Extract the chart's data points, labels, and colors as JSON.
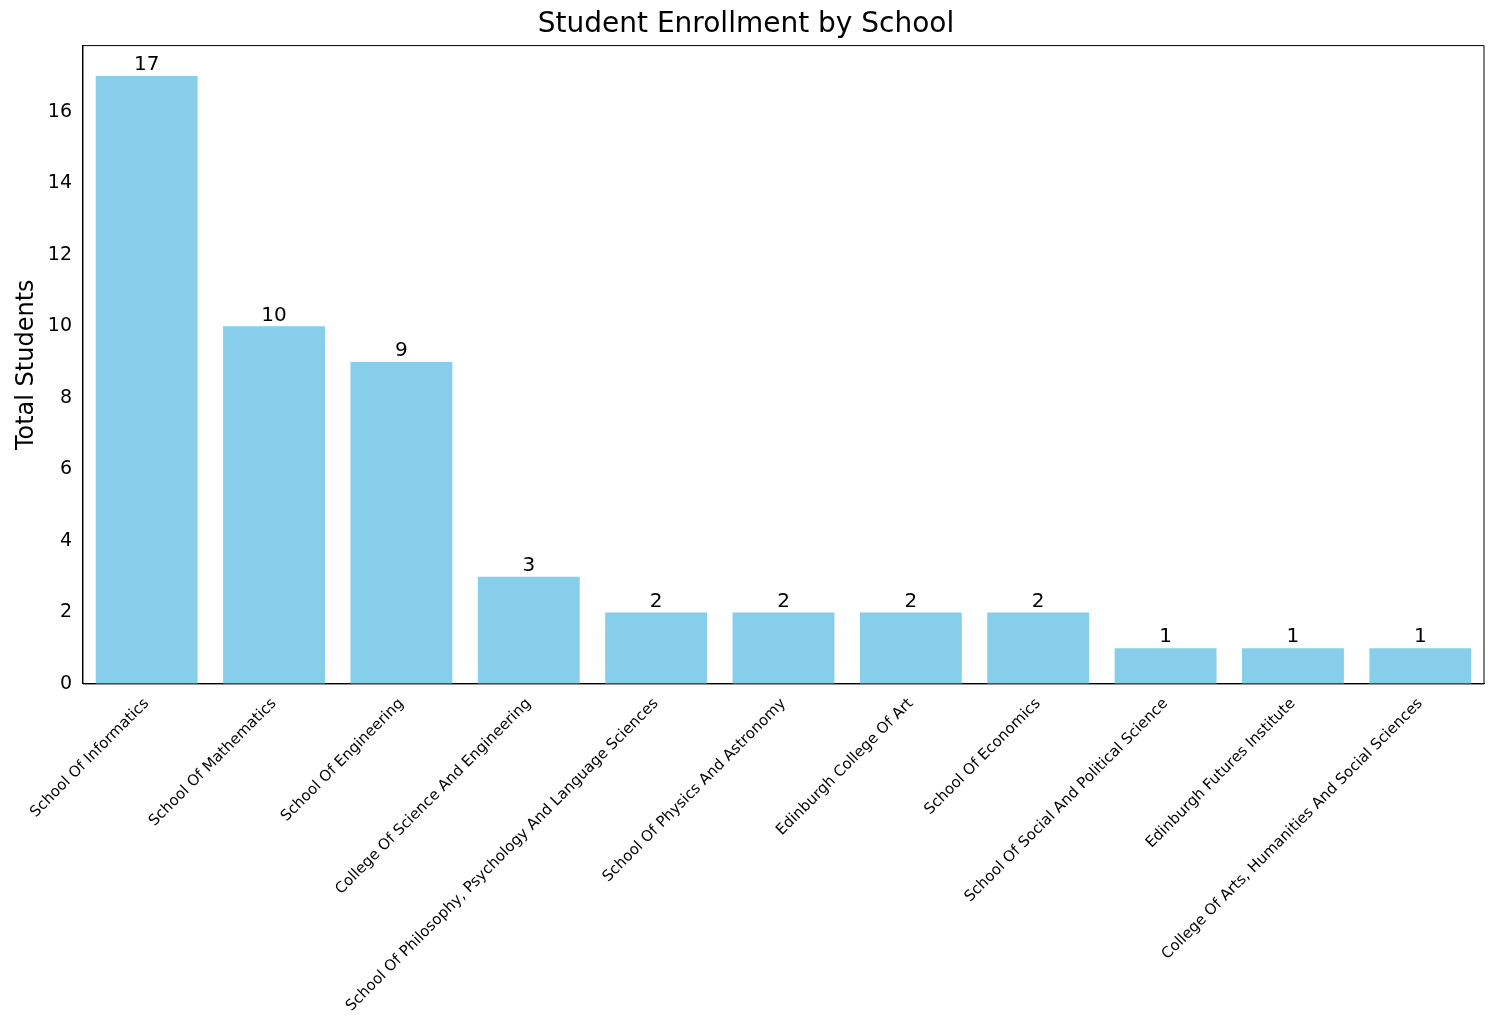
{
  "chart_data": {
    "type": "bar",
    "title": "Student Enrollment by School",
    "ylabel": "Total Students",
    "categories": [
      "School Of Informatics",
      "School Of Mathematics",
      "School Of Engineering",
      "College Of Science And Engineering",
      "School Of Philosophy, Psychology And Language Sciences",
      "School Of Physics And Astronomy",
      "Edinburgh College Of Art",
      "School Of Economics",
      "School Of Social And Political Science",
      "Edinburgh Futures Institute",
      "College Of Arts, Humanities And Social Sciences"
    ],
    "values": [
      17,
      10,
      9,
      3,
      2,
      2,
      2,
      2,
      1,
      1,
      1
    ],
    "color": "#87ceeb",
    "ylim": [
      0,
      17.85
    ],
    "yticks": [
      0,
      2,
      4,
      6,
      8,
      10,
      12,
      14,
      16
    ],
    "grid": false,
    "legend": false,
    "data_labels": true
  }
}
